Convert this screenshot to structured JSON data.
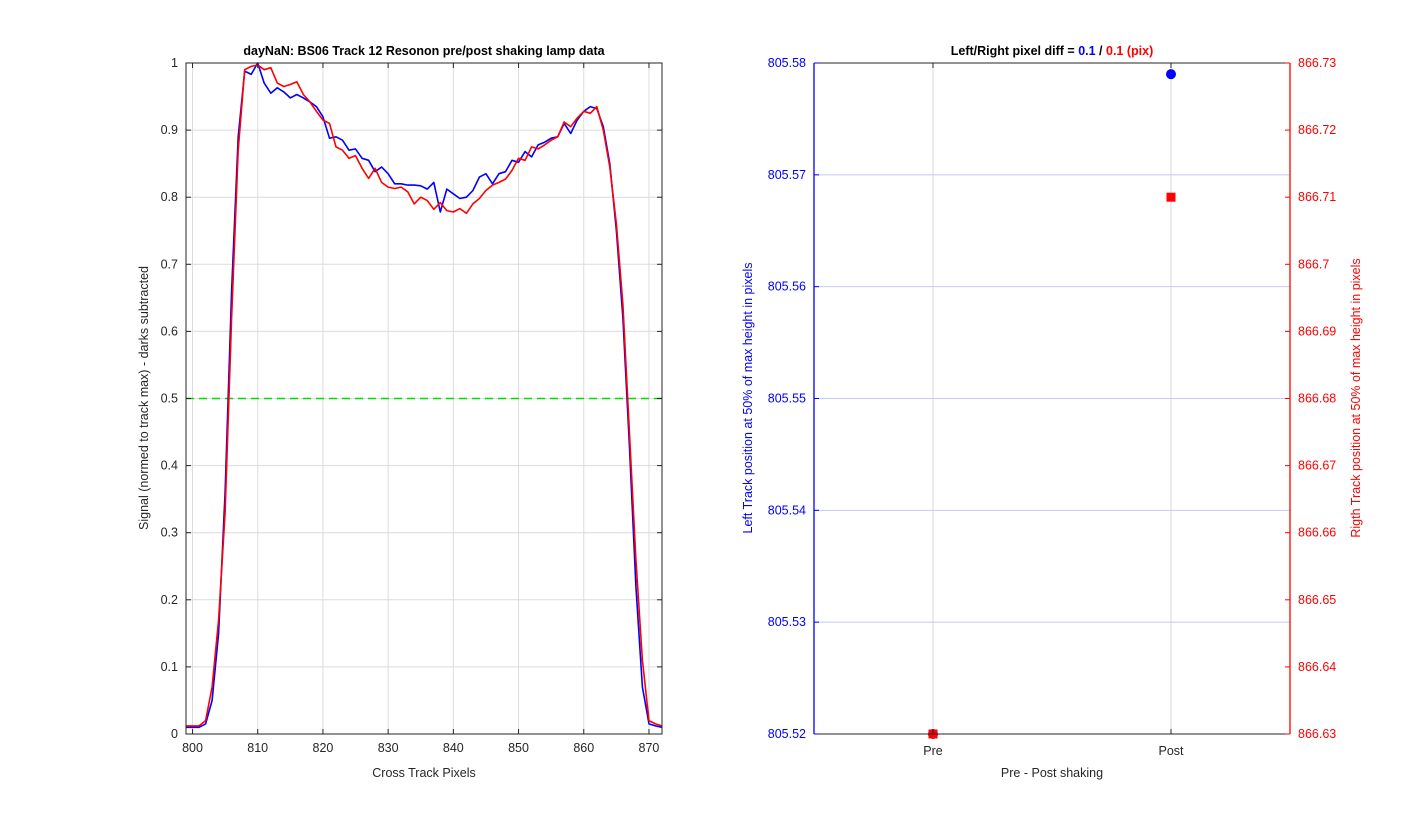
{
  "chart_data": [
    {
      "type": "line",
      "title": "dayNaN: BS06  Track 12 Resonon pre/post shaking lamp data",
      "xlabel": "Cross Track Pixels",
      "ylabel": "Signal (normed to track max) - darks subtracted",
      "xlim": [
        799,
        872
      ],
      "ylim": [
        0,
        1
      ],
      "xticks": [
        "800",
        "810",
        "820",
        "830",
        "840",
        "850",
        "860",
        "870"
      ],
      "yticks": [
        "0",
        "0.1",
        "0.2",
        "0.3",
        "0.4",
        "0.5",
        "0.6",
        "0.7",
        "0.8",
        "0.9",
        "1"
      ],
      "grid": true,
      "reference_line": {
        "y": 0.5,
        "color": "#00dd00",
        "style": "dashed"
      },
      "colors": {
        "pre": "#0000ff",
        "post": "#ff0000"
      },
      "x": [
        799,
        800,
        801,
        802,
        803,
        804,
        805,
        806,
        807,
        808,
        809,
        810,
        811,
        812,
        813,
        814,
        815,
        816,
        817,
        818,
        819,
        820,
        821,
        822,
        823,
        824,
        825,
        826,
        827,
        828,
        829,
        830,
        831,
        832,
        833,
        834,
        835,
        836,
        837,
        838,
        839,
        840,
        841,
        842,
        843,
        844,
        845,
        846,
        847,
        848,
        849,
        850,
        851,
        852,
        853,
        854,
        855,
        856,
        857,
        858,
        859,
        860,
        861,
        862,
        863,
        864,
        865,
        866,
        867,
        868,
        869,
        870,
        871,
        872
      ],
      "series": [
        {
          "values": [
            0.01,
            0.01,
            0.01,
            0.015,
            0.05,
            0.15,
            0.36,
            0.66,
            0.89,
            0.988,
            0.983,
            1.0,
            0.97,
            0.955,
            0.963,
            0.957,
            0.948,
            0.953,
            0.948,
            0.942,
            0.935,
            0.92,
            0.888,
            0.89,
            0.885,
            0.87,
            0.872,
            0.858,
            0.855,
            0.838,
            0.845,
            0.835,
            0.82,
            0.82,
            0.818,
            0.818,
            0.817,
            0.812,
            0.822,
            0.778,
            0.812,
            0.805,
            0.798,
            0.8,
            0.81,
            0.83,
            0.835,
            0.82,
            0.835,
            0.838,
            0.855,
            0.852,
            0.868,
            0.86,
            0.878,
            0.882,
            0.888,
            0.89,
            0.91,
            0.895,
            0.915,
            0.928,
            0.935,
            0.932,
            0.905,
            0.85,
            0.75,
            0.62,
            0.43,
            0.22,
            0.07,
            0.015,
            0.012,
            0.01
          ]
        },
        {
          "values": [
            0.012,
            0.012,
            0.012,
            0.02,
            0.07,
            0.17,
            0.33,
            0.62,
            0.87,
            0.99,
            0.995,
            0.997,
            0.99,
            0.993,
            0.97,
            0.965,
            0.968,
            0.972,
            0.953,
            0.942,
            0.928,
            0.915,
            0.91,
            0.875,
            0.87,
            0.858,
            0.862,
            0.843,
            0.828,
            0.843,
            0.822,
            0.815,
            0.813,
            0.815,
            0.808,
            0.79,
            0.8,
            0.795,
            0.782,
            0.792,
            0.78,
            0.778,
            0.783,
            0.776,
            0.79,
            0.798,
            0.81,
            0.818,
            0.822,
            0.827,
            0.84,
            0.858,
            0.855,
            0.875,
            0.872,
            0.878,
            0.885,
            0.89,
            0.912,
            0.905,
            0.918,
            0.928,
            0.925,
            0.935,
            0.9,
            0.845,
            0.76,
            0.64,
            0.45,
            0.26,
            0.11,
            0.02,
            0.015,
            0.012
          ]
        }
      ]
    },
    {
      "type": "scatter",
      "title_parts": [
        "Left/Right pixel diff = ",
        "0.1",
        " / ",
        "0.1 (pix)"
      ],
      "xlabel": "Pre - Post shaking",
      "categories": [
        "Pre",
        "Post"
      ],
      "ylabel_left": "Left Track position at 50% of max height in pixels",
      "ylabel_right": "Rigth Track position at 50% of max height in pixels",
      "ylim_left": [
        805.52,
        805.58
      ],
      "ylim_right": [
        866.63,
        866.73
      ],
      "yticks_left": [
        "805.52",
        "805.53",
        "805.54",
        "805.55",
        "805.56",
        "805.57",
        "805.58"
      ],
      "yticks_right": [
        "866.63",
        "866.64",
        "866.65",
        "866.66",
        "866.67",
        "866.68",
        "866.69",
        "866.7",
        "866.71",
        "866.72",
        "866.73"
      ],
      "grid": true,
      "series": [
        {
          "axis": "left",
          "marker": "circle",
          "color": "#0000ff",
          "values": [
            805.52,
            805.579
          ]
        },
        {
          "axis": "right",
          "marker": "square",
          "color": "#ff0000",
          "values": [
            866.63,
            866.71
          ]
        }
      ],
      "colors": {
        "left": "#0000ff",
        "right": "#ff0000",
        "title": "#000000"
      }
    }
  ]
}
